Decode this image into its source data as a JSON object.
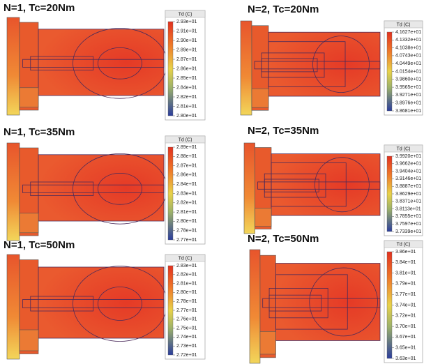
{
  "panels": [
    {
      "title": "N=1, Tc=20Nm",
      "legend_title": "Td (C)",
      "ticks": [
        "2.93e+01",
        "2.91e+01",
        "2.90e+01",
        "2.89e+01",
        "2.87e+01",
        "2.86e+01",
        "2.85e+01",
        "2.84e+01",
        "2.82e+01",
        "2.81e+01",
        "2.80e+01"
      ]
    },
    {
      "title": "N=2, Tc=20Nm",
      "legend_title": "Td (C)",
      "ticks": [
        "4.1627e+01",
        "4.1332e+01",
        "4.1038e+01",
        "4.0743e+01",
        "4.0449e+01",
        "4.0154e+01",
        "3.9860e+01",
        "3.9565e+01",
        "3.9271e+01",
        "3.8976e+01",
        "3.8681e+01"
      ]
    },
    {
      "title": "N=1, Tc=35Nm",
      "legend_title": "Td (C)",
      "ticks": [
        "2.89e+01",
        "2.88e+01",
        "2.87e+01",
        "2.86e+01",
        "2.84e+01",
        "2.83e+01",
        "2.82e+01",
        "2.81e+01",
        "2.80e+01",
        "2.78e+01",
        "2.77e+01"
      ]
    },
    {
      "title": "N=2, Tc=35Nm",
      "legend_title": "Td (C)",
      "ticks": [
        "3.9920e+01",
        "3.9662e+01",
        "3.9404e+01",
        "3.9146e+01",
        "3.8887e+01",
        "3.8629e+01",
        "3.8371e+01",
        "3.8113e+01",
        "3.7855e+01",
        "3.7597e+01",
        "3.7339e+01"
      ]
    },
    {
      "title": "N=1, Tc=50Nm",
      "legend_title": "Td (C)",
      "ticks": [
        "2.83e+01",
        "2.82e+01",
        "2.81e+01",
        "2.80e+01",
        "2.78e+01",
        "2.77e+01",
        "2.76e+01",
        "2.75e+01",
        "2.74e+01",
        "2.73e+01",
        "2.72e+01"
      ]
    },
    {
      "title": "N=2, Tc=50Nm",
      "legend_title": "Td (C)",
      "ticks": [
        "3.86e+01",
        "3.84e+01",
        "3.81e+01",
        "3.79e+01",
        "3.77e+01",
        "3.74e+01",
        "3.72e+01",
        "3.70e+01",
        "3.67e+01",
        "3.65e+01",
        "3.63e+01"
      ]
    }
  ]
}
